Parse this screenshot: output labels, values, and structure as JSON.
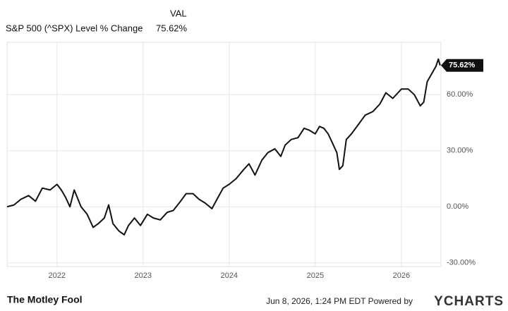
{
  "chart_data": {
    "type": "line",
    "legend_title": "VAL",
    "x": [
      2021.42,
      2021.5,
      2021.58,
      2021.67,
      2021.75,
      2021.83,
      2021.92,
      2022.0,
      2022.05,
      2022.1,
      2022.15,
      2022.2,
      2022.28,
      2022.35,
      2022.42,
      2022.48,
      2022.55,
      2022.6,
      2022.65,
      2022.72,
      2022.78,
      2022.83,
      2022.9,
      2022.97,
      2023.05,
      2023.12,
      2023.2,
      2023.28,
      2023.35,
      2023.42,
      2023.5,
      2023.58,
      2023.65,
      2023.72,
      2023.8,
      2023.87,
      2023.93,
      2024.0,
      2024.08,
      2024.17,
      2024.23,
      2024.3,
      2024.38,
      2024.45,
      2024.53,
      2024.6,
      2024.65,
      2024.72,
      2024.8,
      2024.87,
      2024.93,
      2025.0,
      2025.05,
      2025.1,
      2025.15,
      2025.2,
      2025.25,
      2025.28,
      2025.32,
      2025.36,
      2025.42,
      2025.5,
      2025.58,
      2025.67,
      2025.75,
      2025.82,
      2025.9,
      2026.0,
      2026.08,
      2026.15,
      2026.22,
      2026.26,
      2026.3,
      2026.35,
      2026.4,
      2026.43,
      2026.45
    ],
    "series": [
      {
        "name": "S&P 500 (^SPX) Level % Change",
        "color": "#111111",
        "values": [
          0,
          1,
          4,
          6,
          3,
          10,
          9,
          12,
          9,
          5,
          0,
          9,
          0,
          -4,
          -11,
          -9,
          -6,
          1,
          -9,
          -13,
          -15,
          -10,
          -6,
          -10,
          -4,
          -6,
          -7,
          -3,
          -2,
          2,
          7,
          7,
          4,
          2,
          -1,
          5,
          10,
          12,
          15,
          20,
          23,
          17,
          25,
          29,
          31,
          27,
          33,
          36,
          37,
          42,
          41,
          39,
          43,
          42,
          39,
          34,
          29,
          20,
          22,
          36,
          39,
          44,
          49,
          51,
          55,
          61,
          58,
          63,
          63,
          60,
          54,
          56,
          67,
          71,
          75,
          79,
          75.62
        ],
        "value_labels": [
          null,
          null,
          null,
          null,
          null,
          null,
          null,
          null,
          null,
          null,
          null,
          null,
          null,
          null,
          null,
          null,
          null,
          null,
          null,
          null,
          null,
          null,
          null,
          null,
          null,
          null,
          null,
          null,
          null,
          null,
          null,
          null,
          null,
          null,
          null,
          null,
          null,
          null,
          null,
          null,
          null,
          null,
          null,
          null,
          null,
          null,
          null,
          null,
          null,
          null,
          null,
          null,
          null,
          null,
          null,
          null,
          null,
          null,
          null,
          null,
          null,
          null,
          null,
          null,
          null,
          null,
          null,
          null,
          null,
          null,
          null,
          null,
          null,
          null,
          null,
          null,
          "75.62%"
        ]
      }
    ],
    "xlim": [
      2021.42,
      2026.46
    ],
    "xticks": [
      2022,
      2023,
      2024,
      2025,
      2026
    ],
    "ylim": [
      -32,
      88
    ],
    "yticks": [
      {
        "value": -30,
        "label": "-30.00%"
      },
      {
        "value": 0,
        "label": "0.00%"
      },
      {
        "value": 30,
        "label": "30.00%"
      },
      {
        "value": 60,
        "label": "60.00%"
      }
    ],
    "grid": true
  },
  "footer": {
    "source": "The Motley Fool",
    "timestamp": "Jun 8, 2026, 1:24 PM EDT Powered by",
    "brand": "YCHARTS"
  }
}
